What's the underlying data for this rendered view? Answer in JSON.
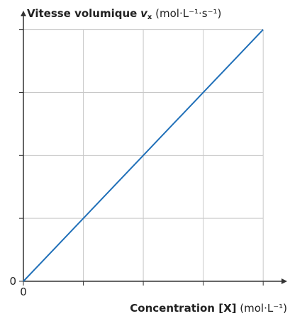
{
  "chart_data": {
    "type": "line",
    "ylabel": {
      "name": "Vitesse volumique",
      "symbol": "v",
      "subscript": "x",
      "unit": "(mol·L⁻¹·s⁻¹)"
    },
    "xlabel": {
      "name": "Concentration [X]",
      "unit": "(mol·L⁻¹)"
    },
    "x": [
      0,
      4
    ],
    "series": [
      {
        "color": "#1f6fb8",
        "values": [
          0,
          4
        ]
      }
    ],
    "xlim": [
      0,
      4.4
    ],
    "ylim": [
      0,
      4.3
    ],
    "xticks": [
      0,
      1,
      2,
      3,
      4
    ],
    "yticks": [
      0,
      1,
      2,
      3,
      4
    ],
    "grid": true
  }
}
